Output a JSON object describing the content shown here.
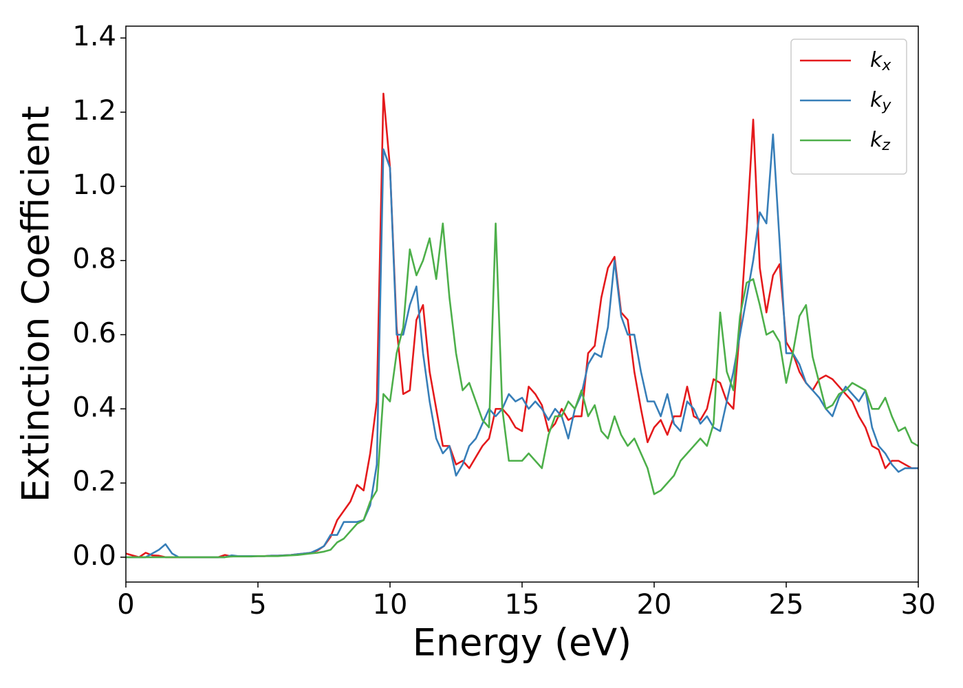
{
  "chart_data": {
    "type": "line",
    "xlabel": "Energy (eV)",
    "ylabel": "Extinction Coefficient",
    "x": [
      0,
      0.25,
      0.5,
      0.75,
      1,
      1.25,
      1.5,
      1.75,
      2,
      2.25,
      2.5,
      2.75,
      3,
      3.25,
      3.5,
      3.75,
      4,
      4.25,
      4.5,
      4.75,
      5,
      5.25,
      5.5,
      5.75,
      6,
      6.25,
      6.5,
      6.75,
      7,
      7.25,
      7.5,
      7.75,
      8,
      8.25,
      8.5,
      8.75,
      9,
      9.25,
      9.5,
      9.75,
      10,
      10.25,
      10.5,
      10.75,
      11,
      11.25,
      11.5,
      11.75,
      12,
      12.25,
      12.5,
      12.75,
      13,
      13.25,
      13.5,
      13.75,
      14,
      14.25,
      14.5,
      14.75,
      15,
      15.25,
      15.5,
      15.75,
      16,
      16.25,
      16.5,
      16.75,
      17,
      17.25,
      17.5,
      17.75,
      18,
      18.25,
      18.5,
      18.75,
      19,
      19.25,
      19.5,
      19.75,
      20,
      20.25,
      20.5,
      20.75,
      21,
      21.25,
      21.5,
      21.75,
      22,
      22.25,
      22.5,
      22.75,
      23,
      23.25,
      23.5,
      23.75,
      24,
      24.25,
      24.5,
      24.75,
      25,
      25.25,
      25.5,
      25.75,
      26,
      26.25,
      26.5,
      26.75,
      27,
      27.25,
      27.5,
      27.75,
      28,
      28.25,
      28.5,
      28.75,
      29,
      29.25,
      29.5,
      29.75,
      30
    ],
    "series": [
      {
        "name": "kx",
        "color": "#e41a1c",
        "values": [
          0.01,
          0.005,
          0.0,
          0.012,
          0.005,
          0.004,
          0.0,
          0.0,
          0,
          0,
          0,
          0,
          0,
          0,
          0,
          0.006,
          0.002,
          0.003,
          0.003,
          0.003,
          0.003,
          0.003,
          0.004,
          0.004,
          0.005,
          0.006,
          0.008,
          0.01,
          0.012,
          0.018,
          0.03,
          0.055,
          0.1,
          0.125,
          0.15,
          0.195,
          0.18,
          0.28,
          0.42,
          1.25,
          1.05,
          0.62,
          0.44,
          0.45,
          0.64,
          0.68,
          0.5,
          0.4,
          0.3,
          0.3,
          0.25,
          0.26,
          0.24,
          0.27,
          0.3,
          0.32,
          0.4,
          0.4,
          0.38,
          0.35,
          0.34,
          0.46,
          0.44,
          0.41,
          0.34,
          0.36,
          0.4,
          0.37,
          0.38,
          0.38,
          0.55,
          0.57,
          0.7,
          0.78,
          0.81,
          0.66,
          0.64,
          0.5,
          0.4,
          0.31,
          0.35,
          0.37,
          0.33,
          0.38,
          0.38,
          0.46,
          0.38,
          0.37,
          0.4,
          0.48,
          0.47,
          0.42,
          0.4,
          0.62,
          0.88,
          1.18,
          0.78,
          0.66,
          0.76,
          0.79,
          0.58,
          0.55,
          0.5,
          0.47,
          0.45,
          0.48,
          0.49,
          0.48,
          0.46,
          0.44,
          0.42,
          0.38,
          0.35,
          0.3,
          0.29,
          0.24,
          0.26,
          0.26,
          0.25,
          0.24,
          0.24
        ]
      },
      {
        "name": "ky",
        "color": "#377eb8",
        "values": [
          0.0,
          0.0,
          0.0,
          0.0,
          0.01,
          0.02,
          0.035,
          0.01,
          0,
          0,
          0,
          0,
          0,
          0,
          0,
          0,
          0.005,
          0.003,
          0.003,
          0.003,
          0.003,
          0.003,
          0.004,
          0.004,
          0.005,
          0.006,
          0.008,
          0.01,
          0.012,
          0.02,
          0.03,
          0.06,
          0.06,
          0.095,
          0.095,
          0.095,
          0.1,
          0.14,
          0.25,
          1.1,
          1.05,
          0.6,
          0.6,
          0.68,
          0.73,
          0.55,
          0.42,
          0.32,
          0.28,
          0.3,
          0.22,
          0.25,
          0.3,
          0.32,
          0.36,
          0.4,
          0.38,
          0.4,
          0.44,
          0.42,
          0.43,
          0.4,
          0.42,
          0.4,
          0.37,
          0.4,
          0.38,
          0.32,
          0.4,
          0.44,
          0.52,
          0.55,
          0.54,
          0.62,
          0.8,
          0.65,
          0.6,
          0.6,
          0.5,
          0.42,
          0.42,
          0.38,
          0.44,
          0.36,
          0.34,
          0.42,
          0.4,
          0.36,
          0.38,
          0.35,
          0.34,
          0.42,
          0.5,
          0.6,
          0.7,
          0.8,
          0.93,
          0.9,
          1.14,
          0.85,
          0.55,
          0.55,
          0.52,
          0.47,
          0.45,
          0.43,
          0.4,
          0.38,
          0.43,
          0.46,
          0.44,
          0.42,
          0.45,
          0.35,
          0.3,
          0.28,
          0.25,
          0.23,
          0.24,
          0.24,
          0.24
        ]
      },
      {
        "name": "kz",
        "color": "#4daf4a",
        "values": [
          0,
          0,
          0,
          0,
          0,
          0,
          0,
          0,
          0,
          0,
          0,
          0,
          0,
          0,
          0,
          0,
          0.002,
          0.002,
          0.002,
          0.002,
          0.003,
          0.003,
          0.003,
          0.003,
          0.004,
          0.005,
          0.006,
          0.008,
          0.01,
          0.012,
          0.015,
          0.02,
          0.04,
          0.05,
          0.07,
          0.09,
          0.1,
          0.15,
          0.18,
          0.44,
          0.42,
          0.55,
          0.62,
          0.83,
          0.76,
          0.8,
          0.86,
          0.75,
          0.9,
          0.7,
          0.55,
          0.45,
          0.47,
          0.42,
          0.37,
          0.35,
          0.9,
          0.4,
          0.26,
          0.26,
          0.26,
          0.28,
          0.26,
          0.24,
          0.33,
          0.38,
          0.38,
          0.42,
          0.4,
          0.45,
          0.38,
          0.41,
          0.34,
          0.32,
          0.38,
          0.33,
          0.3,
          0.32,
          0.28,
          0.24,
          0.17,
          0.18,
          0.2,
          0.22,
          0.26,
          0.28,
          0.3,
          0.32,
          0.3,
          0.36,
          0.66,
          0.5,
          0.45,
          0.65,
          0.74,
          0.75,
          0.68,
          0.6,
          0.61,
          0.58,
          0.47,
          0.55,
          0.65,
          0.68,
          0.54,
          0.47,
          0.4,
          0.41,
          0.44,
          0.45,
          0.47,
          0.46,
          0.45,
          0.4,
          0.4,
          0.43,
          0.38,
          0.34,
          0.35,
          0.31,
          0.3
        ]
      }
    ],
    "xlim": [
      0,
      30
    ],
    "xticks": [
      0,
      5,
      10,
      15,
      20,
      25,
      30
    ],
    "ylim": [
      -0.067,
      1.432
    ],
    "yticks": [
      {
        "value": 0,
        "label": "0.0"
      },
      0.2,
      0.4,
      0.6,
      0.8,
      {
        "value": 1,
        "label": "1.0"
      },
      1.2,
      1.4
    ],
    "legend": "upper right"
  }
}
